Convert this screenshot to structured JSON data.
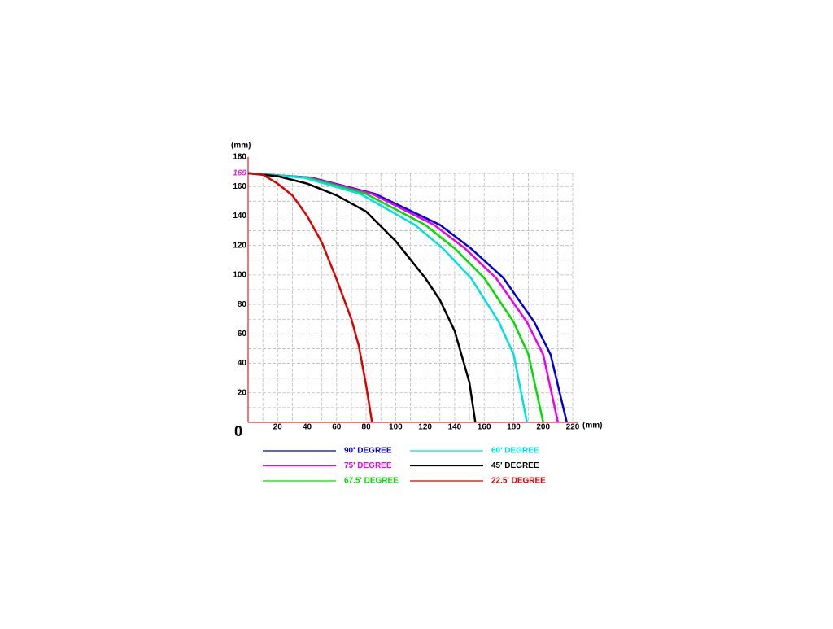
{
  "chart_data": {
    "type": "line",
    "xlabel": "(mm)",
    "ylabel": "(mm)",
    "xlim": [
      0,
      220
    ],
    "ylim": [
      0,
      180
    ],
    "xticks": [
      0,
      20,
      40,
      60,
      80,
      100,
      120,
      140,
      160,
      180,
      200,
      220
    ],
    "yticks": [
      20,
      40,
      60,
      80,
      100,
      120,
      140,
      160,
      180
    ],
    "highlight_ytick": 169,
    "highlight_color": "#e020e0",
    "grid": true,
    "series": [
      {
        "name": "90' DEGREE",
        "color": "#0000dd",
        "x": [
          0,
          43,
          86,
          130,
          151,
          173,
          194,
          205,
          216
        ],
        "values": [
          169,
          166,
          155,
          134,
          118,
          98,
          68,
          46,
          0
        ]
      },
      {
        "name": "75' DEGREE",
        "color": "#ee00ee",
        "x": [
          0,
          42,
          84,
          126,
          147,
          168,
          189,
          200,
          210
        ],
        "values": [
          169,
          166,
          155,
          134,
          118,
          98,
          68,
          46,
          0
        ]
      },
      {
        "name": "67.5' DEGREE",
        "color": "#00dd00",
        "x": [
          0,
          40,
          80,
          120,
          140,
          160,
          180,
          190,
          200
        ],
        "values": [
          169,
          166,
          155,
          134,
          118,
          98,
          68,
          46,
          0
        ]
      },
      {
        "name": "60' DEGREE",
        "color": "#00e0e0",
        "x": [
          0,
          38,
          76,
          113,
          132,
          151,
          170,
          180,
          189
        ],
        "values": [
          169,
          166,
          155,
          134,
          118,
          98,
          68,
          46,
          0
        ]
      },
      {
        "name": "45' DEGREE",
        "color": "#000000",
        "x": [
          0,
          20,
          40,
          60,
          80,
          100,
          120,
          130,
          140,
          150,
          154
        ],
        "values": [
          169,
          167,
          162,
          154,
          143,
          123,
          98,
          83,
          62,
          27,
          0
        ]
      },
      {
        "name": "22.5' DEGREE",
        "color": "#dd0000",
        "x": [
          0,
          10,
          20,
          30,
          40,
          50,
          60,
          70,
          75,
          80,
          84
        ],
        "values": [
          169,
          168,
          162,
          154,
          140,
          122,
          97,
          70,
          52,
          25,
          0
        ]
      }
    ]
  }
}
